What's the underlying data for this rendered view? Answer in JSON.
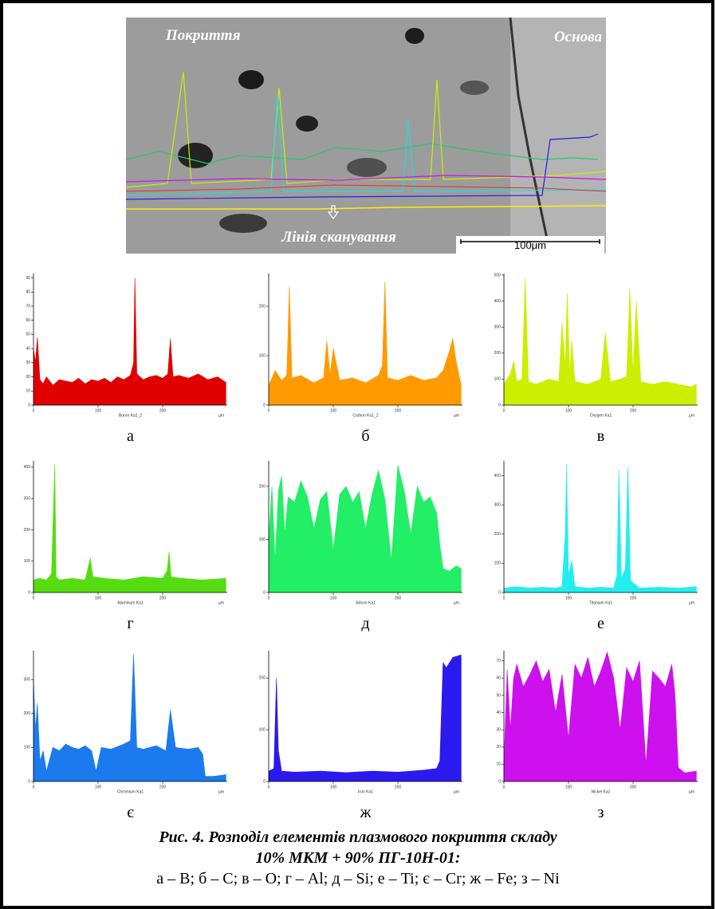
{
  "micrograph": {
    "left_label": "Покриття",
    "right_label": "Основа",
    "scan_label": "Лінія сканування",
    "scale_bar": "100μm"
  },
  "chart_data": [
    {
      "type": "area",
      "panel_label": "а",
      "xlabel": "µm",
      "xlim": [
        0,
        300
      ],
      "xticks": [
        0,
        100,
        200
      ],
      "ylim": [
        0,
        92
      ],
      "yticks": [
        0,
        10,
        20,
        30,
        40,
        50,
        60,
        70,
        80,
        90
      ],
      "x": [
        0,
        3,
        6,
        10,
        15,
        20,
        30,
        40,
        50,
        60,
        70,
        80,
        90,
        100,
        110,
        120,
        130,
        140,
        150,
        155,
        157,
        160,
        170,
        180,
        190,
        200,
        208,
        212,
        216,
        225,
        240,
        255,
        270,
        285,
        298
      ],
      "series": [
        {
          "name": "Boron Ka1_2",
          "color": "#e00000",
          "values": [
            40,
            30,
            48,
            18,
            15,
            20,
            14,
            18,
            17,
            16,
            19,
            15,
            18,
            17,
            19,
            16,
            20,
            18,
            21,
            30,
            90,
            22,
            18,
            20,
            21,
            19,
            22,
            47,
            20,
            21,
            19,
            22,
            18,
            20,
            16
          ]
        }
      ]
    },
    {
      "type": "area",
      "panel_label": "б",
      "xlabel": "µm",
      "xlim": [
        0,
        300
      ],
      "xticks": [
        0,
        100,
        200
      ],
      "ylim": [
        0,
        263
      ],
      "yticks": [
        0,
        100,
        200
      ],
      "x": [
        0,
        10,
        20,
        28,
        32,
        36,
        50,
        70,
        85,
        90,
        95,
        100,
        110,
        130,
        150,
        170,
        176,
        180,
        184,
        200,
        220,
        240,
        260,
        270,
        280,
        285,
        290,
        298
      ],
      "series": [
        {
          "name": "Carbon Ka1_2",
          "color": "#ff9a00",
          "values": [
            40,
            70,
            50,
            60,
            240,
            55,
            60,
            45,
            55,
            130,
            60,
            115,
            50,
            55,
            45,
            60,
            80,
            250,
            55,
            50,
            60,
            50,
            55,
            70,
            110,
            135,
            90,
            40
          ]
        }
      ]
    },
    {
      "type": "area",
      "panel_label": "в",
      "xlabel": "µm",
      "xlim": [
        0,
        300
      ],
      "xticks": [
        0,
        100,
        200
      ],
      "ylim": [
        0,
        500
      ],
      "yticks": [
        0,
        100,
        200,
        300,
        400,
        500
      ],
      "x": [
        0,
        10,
        15,
        20,
        28,
        33,
        38,
        50,
        70,
        85,
        90,
        95,
        98,
        102,
        105,
        110,
        130,
        150,
        157,
        165,
        180,
        190,
        195,
        200,
        205,
        212,
        230,
        250,
        270,
        290,
        298
      ],
      "series": [
        {
          "name": "Oxygen Ka1",
          "color": "#ccee00",
          "values": [
            80,
            120,
            170,
            90,
            100,
            490,
            90,
            80,
            100,
            90,
            320,
            150,
            430,
            120,
            250,
            90,
            80,
            100,
            280,
            90,
            100,
            110,
            450,
            120,
            400,
            90,
            80,
            90,
            80,
            70,
            80
          ]
        }
      ]
    },
    {
      "type": "area",
      "panel_label": "г",
      "xlabel": "µm",
      "xlim": [
        0,
        300
      ],
      "xticks": [
        0,
        100,
        200
      ],
      "ylim": [
        0,
        415
      ],
      "yticks": [
        0,
        100,
        200,
        300,
        400
      ],
      "x": [
        0,
        10,
        20,
        28,
        31,
        33,
        35,
        40,
        60,
        80,
        88,
        92,
        110,
        140,
        170,
        200,
        207,
        210,
        213,
        230,
        260,
        298
      ],
      "series": [
        {
          "name": "Aluminum Ka1",
          "color": "#55dd11",
          "values": [
            40,
            45,
            40,
            60,
            280,
            410,
            50,
            40,
            45,
            40,
            110,
            50,
            45,
            40,
            50,
            45,
            70,
            130,
            50,
            45,
            40,
            45
          ]
        }
      ]
    },
    {
      "type": "area",
      "panel_label": "д",
      "xlabel": "µm",
      "xlim": [
        0,
        300
      ],
      "xticks": [
        0,
        100,
        200
      ],
      "ylim": [
        0,
        245
      ],
      "yticks": [
        0,
        100,
        200
      ],
      "x": [
        0,
        5,
        10,
        15,
        20,
        25,
        30,
        40,
        50,
        60,
        70,
        80,
        90,
        100,
        110,
        120,
        130,
        140,
        150,
        160,
        170,
        180,
        190,
        200,
        210,
        220,
        230,
        240,
        250,
        260,
        265,
        270,
        280,
        290,
        298
      ],
      "series": [
        {
          "name": "Silicon Ka1",
          "color": "#22ee66",
          "values": [
            100,
            200,
            60,
            190,
            220,
            110,
            180,
            170,
            210,
            180,
            120,
            175,
            190,
            80,
            185,
            200,
            170,
            190,
            120,
            185,
            230,
            175,
            60,
            240,
            190,
            110,
            200,
            170,
            180,
            150,
            90,
            45,
            40,
            50,
            45
          ]
        }
      ]
    },
    {
      "type": "area",
      "panel_label": "е",
      "xlabel": "µm",
      "xlim": [
        0,
        300
      ],
      "xticks": [
        0,
        100,
        200
      ],
      "ylim": [
        0,
        445
      ],
      "yticks": [
        0,
        100,
        200,
        300,
        400
      ],
      "x": [
        0,
        20,
        40,
        60,
        80,
        90,
        95,
        97,
        100,
        105,
        110,
        130,
        150,
        170,
        175,
        178,
        182,
        188,
        192,
        196,
        210,
        240,
        270,
        298
      ],
      "series": [
        {
          "name": "Titanium Ka1",
          "color": "#22eeee",
          "values": [
            15,
            20,
            15,
            18,
            15,
            20,
            200,
            440,
            60,
            110,
            20,
            15,
            18,
            15,
            60,
            420,
            50,
            80,
            430,
            40,
            15,
            18,
            15,
            20
          ]
        }
      ]
    },
    {
      "type": "area",
      "panel_label": "є",
      "xlabel": "µm",
      "xlim": [
        0,
        300
      ],
      "xticks": [
        0,
        100,
        200
      ],
      "ylim": [
        0,
        380
      ],
      "yticks": [
        0,
        100,
        200,
        300
      ],
      "x": [
        0,
        3,
        6,
        10,
        15,
        20,
        30,
        40,
        50,
        60,
        70,
        80,
        90,
        97,
        105,
        120,
        140,
        150,
        155,
        160,
        170,
        190,
        205,
        212,
        220,
        240,
        255,
        262,
        266,
        280,
        298
      ],
      "series": [
        {
          "name": "Chromium Ka1",
          "color": "#1a7aee",
          "values": [
            300,
            150,
            230,
            60,
            90,
            30,
            100,
            90,
            110,
            100,
            95,
            105,
            90,
            30,
            100,
            95,
            110,
            120,
            375,
            100,
            95,
            105,
            90,
            210,
            100,
            95,
            100,
            80,
            15,
            15,
            20
          ]
        }
      ]
    },
    {
      "type": "area",
      "panel_label": "ж",
      "xlabel": "µm",
      "xlim": [
        0,
        300
      ],
      "xticks": [
        0,
        100,
        200
      ],
      "ylim": [
        0,
        250
      ],
      "yticks": [
        0,
        100,
        200
      ],
      "x": [
        0,
        8,
        12,
        15,
        20,
        40,
        80,
        120,
        160,
        200,
        240,
        260,
        265,
        270,
        275,
        285,
        298
      ],
      "series": [
        {
          "name": "Iron Ka1",
          "color": "#2a1aee",
          "values": [
            20,
            25,
            200,
            60,
            20,
            18,
            20,
            17,
            20,
            18,
            22,
            25,
            40,
            230,
            220,
            240,
            245
          ]
        }
      ]
    },
    {
      "type": "area",
      "panel_label": "з",
      "xlabel": "µm",
      "xlim": [
        0,
        300
      ],
      "xticks": [
        0,
        100,
        200
      ],
      "ylim": [
        0,
        75
      ],
      "yticks": [
        0,
        10,
        20,
        30,
        40,
        50,
        60,
        70
      ],
      "x": [
        0,
        5,
        10,
        15,
        20,
        30,
        40,
        50,
        60,
        70,
        80,
        90,
        100,
        110,
        120,
        130,
        140,
        150,
        160,
        170,
        180,
        190,
        200,
        210,
        220,
        230,
        240,
        250,
        260,
        265,
        270,
        280,
        298
      ],
      "series": [
        {
          "name": "Nickel Ka1",
          "color": "#cc11ee",
          "values": [
            10,
            65,
            30,
            60,
            68,
            55,
            62,
            70,
            58,
            65,
            40,
            62,
            25,
            68,
            60,
            72,
            55,
            64,
            75,
            60,
            30,
            66,
            58,
            70,
            10,
            64,
            60,
            55,
            68,
            50,
            8,
            5,
            6
          ]
        }
      ]
    }
  ],
  "caption": [
    "Рис. 4. Розподіл елементів плазмового покриття складу",
    "10% МКМ + 90% ПГ-10Н-01:",
    "а – B; б – C; в – O; г – Al; д – Si; е – Ti; є – Cr; ж – Fe; з – Ni"
  ]
}
